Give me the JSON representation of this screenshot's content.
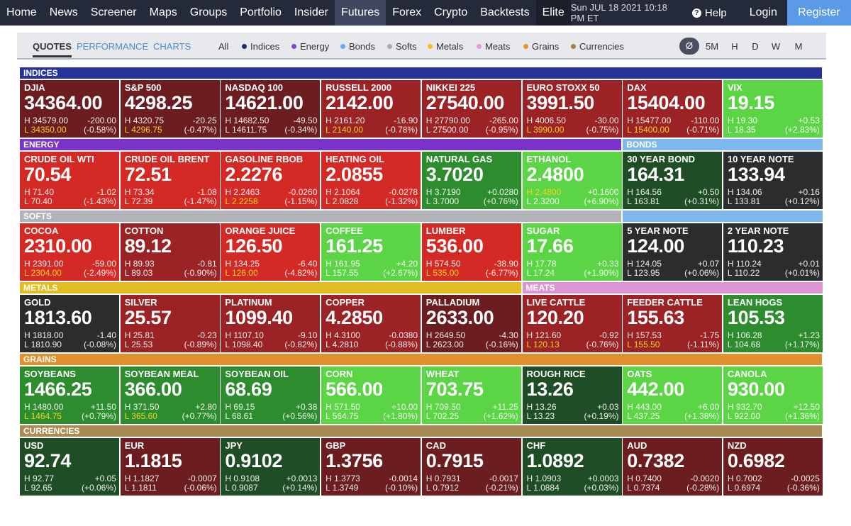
{
  "nav": {
    "items": [
      "Home",
      "News",
      "Screener",
      "Maps",
      "Groups",
      "Portfolio",
      "Insider",
      "Futures",
      "Forex",
      "Crypto",
      "Backtests",
      "Elite"
    ],
    "datetime": "Sun JUL 18 2021 10:18 PM ET",
    "help": "Help",
    "login": "Login",
    "register": "Register"
  },
  "toolbar": {
    "views": [
      "QUOTES",
      "PERFORMANCE",
      "CHARTS"
    ],
    "filters": [
      "All",
      "Indices",
      "Energy",
      "Bonds",
      "Softs",
      "Metals",
      "Meats",
      "Grains",
      "Currencies"
    ],
    "filter_colors": [
      "",
      "#1e2a6e",
      "#8a3fd6",
      "#6aa9e8",
      "#a9aab0",
      "#f2c11a",
      "#e49ad8",
      "#e6912a",
      "#a0804a"
    ],
    "timeframes": [
      "Ø",
      "5M",
      "H",
      "D",
      "W",
      "M"
    ]
  },
  "groups": [
    {
      "label": "INDICES",
      "color": "#25339b",
      "text": "#fff"
    },
    {
      "label": "ENERGY",
      "color": "#7a33c9",
      "text": "#fff"
    },
    {
      "label": "BONDS",
      "color": "#7fb8ee",
      "text": "#fff"
    },
    {
      "label": "SOFTS",
      "color": "#b2b3b8",
      "text": "#fff"
    },
    {
      "label": "METALS",
      "color": "#e2bc22",
      "text": "#fff"
    },
    {
      "label": "MEATS",
      "color": "#dc95d2",
      "text": "#fff"
    },
    {
      "label": "GRAINS",
      "color": "#e0912d",
      "text": "#fff"
    },
    {
      "label": "CURRENCIES",
      "color": "#a88a55",
      "text": "#fff"
    }
  ],
  "tiles": [
    {
      "name": "DJIA",
      "price": "34364.00",
      "h": "H 34579.00",
      "l": "L 34350.00",
      "chg": "-200.00",
      "pct": "(-0.58%)",
      "color": "drd",
      "hl": "l"
    },
    {
      "name": "S&P 500",
      "price": "4298.25",
      "h": "H 4320.75",
      "l": "L 4296.75",
      "chg": "-20.25",
      "pct": "(-0.47%)",
      "color": "drd",
      "hl": "l"
    },
    {
      "name": "NASDAQ 100",
      "price": "14621.00",
      "h": "H 14682.50",
      "l": "L 14611.75",
      "chg": "-49.50",
      "pct": "(-0.34%)",
      "color": "drd",
      "hl": ""
    },
    {
      "name": "RUSSELL 2000",
      "price": "2142.00",
      "h": "H 2161.20",
      "l": "L 2140.00",
      "chg": "-16.90",
      "pct": "(-0.78%)",
      "color": "mrd",
      "hl": "l"
    },
    {
      "name": "NIKKEI 225",
      "price": "27540.00",
      "h": "H 27790.00",
      "l": "L 27500.00",
      "chg": "-265.00",
      "pct": "(-0.95%)",
      "color": "mrd",
      "hl": ""
    },
    {
      "name": "EURO STOXX 50",
      "price": "3991.50",
      "h": "H 4006.50",
      "l": "L 3990.00",
      "chg": "-30.00",
      "pct": "(-0.75%)",
      "color": "mrd",
      "hl": "l"
    },
    {
      "name": "DAX",
      "price": "15404.00",
      "h": "H 15477.00",
      "l": "L 15400.00",
      "chg": "-110.00",
      "pct": "(-0.71%)",
      "color": "mrd",
      "hl": "l"
    },
    {
      "name": "VIX",
      "price": "19.15",
      "h": "H 19.30",
      "l": "L 18.35",
      "chg": "+0.53",
      "pct": "(+2.83%)",
      "color": "bg",
      "hl": ""
    },
    {
      "name": "CRUDE OIL WTI",
      "price": "70.54",
      "h": "H 71.40",
      "l": "L 70.40",
      "chg": "-1.02",
      "pct": "(-1.43%)",
      "color": "rd",
      "hl": ""
    },
    {
      "name": "CRUDE OIL BRENT",
      "price": "72.51",
      "h": "H 73.34",
      "l": "L 72.39",
      "chg": "-1.08",
      "pct": "(-1.47%)",
      "color": "rd",
      "hl": ""
    },
    {
      "name": "GASOLINE RBOB",
      "price": "2.2276",
      "h": "H 2.2463",
      "l": "L 2.2258",
      "chg": "-0.0260",
      "pct": "(-1.15%)",
      "color": "rd",
      "hl": "l"
    },
    {
      "name": "HEATING OIL",
      "price": "2.0855",
      "h": "H 2.1064",
      "l": "L 2.0828",
      "chg": "-0.0278",
      "pct": "(-1.32%)",
      "color": "rd",
      "hl": ""
    },
    {
      "name": "NATURAL GAS",
      "price": "3.7020",
      "h": "H 3.7190",
      "l": "L 3.7000",
      "chg": "+0.0280",
      "pct": "(+0.76%)",
      "color": "mg",
      "hl": ""
    },
    {
      "name": "ETHANOL",
      "price": "2.4800",
      "h": "H 2.4800",
      "l": "L 2.3200",
      "chg": "+0.1600",
      "pct": "(+6.90%)",
      "color": "bg",
      "hl": "h"
    },
    {
      "name": "30 YEAR BOND",
      "price": "164.31",
      "h": "H 164.56",
      "l": "L 163.81",
      "chg": "+0.50",
      "pct": "(+0.31%)",
      "color": "dg",
      "hl": ""
    },
    {
      "name": "10 YEAR NOTE",
      "price": "133.94",
      "h": "H 134.06",
      "l": "L 133.81",
      "chg": "+0.16",
      "pct": "(+0.12%)",
      "color": "dk",
      "hl": ""
    },
    {
      "name": "COCOA",
      "price": "2310.00",
      "h": "H 2391.00",
      "l": "L 2304.00",
      "chg": "-59.00",
      "pct": "(-2.49%)",
      "color": "rd",
      "hl": "l"
    },
    {
      "name": "COTTON",
      "price": "89.12",
      "h": "H 89.93",
      "l": "L 89.03",
      "chg": "-0.81",
      "pct": "(-0.90%)",
      "color": "mrd",
      "hl": ""
    },
    {
      "name": "ORANGE JUICE",
      "price": "126.50",
      "h": "H 134.25",
      "l": "L 126.00",
      "chg": "-6.40",
      "pct": "(-4.82%)",
      "color": "rd",
      "hl": "l"
    },
    {
      "name": "COFFEE",
      "price": "161.25",
      "h": "H 161.95",
      "l": "L 157.55",
      "chg": "+4.20",
      "pct": "(+2.67%)",
      "color": "bg",
      "hl": ""
    },
    {
      "name": "LUMBER",
      "price": "536.00",
      "h": "H 574.50",
      "l": "L 535.00",
      "chg": "-38.90",
      "pct": "(-6.77%)",
      "color": "rd",
      "hl": "l"
    },
    {
      "name": "SUGAR",
      "price": "17.66",
      "h": "H 17.78",
      "l": "L 17.24",
      "chg": "+0.33",
      "pct": "(+1.90%)",
      "color": "bg",
      "hl": ""
    },
    {
      "name": "5 YEAR NOTE",
      "price": "124.00",
      "h": "H 124.05",
      "l": "L 123.95",
      "chg": "+0.07",
      "pct": "(+0.06%)",
      "color": "dk",
      "hl": ""
    },
    {
      "name": "2 YEAR NOTE",
      "price": "110.23",
      "h": "H 110.24",
      "l": "L 110.22",
      "chg": "+0.01",
      "pct": "(+0.01%)",
      "color": "dk",
      "hl": ""
    },
    {
      "name": "GOLD",
      "price": "1813.60",
      "h": "H 1818.00",
      "l": "L 1810.90",
      "chg": "-1.40",
      "pct": "(-0.08%)",
      "color": "dk",
      "hl": ""
    },
    {
      "name": "SILVER",
      "price": "25.57",
      "h": "H 25.81",
      "l": "L 25.53",
      "chg": "-0.23",
      "pct": "(-0.89%)",
      "color": "mrd",
      "hl": ""
    },
    {
      "name": "PLATINUM",
      "price": "1099.40",
      "h": "H 1107.10",
      "l": "L 1098.40",
      "chg": "-9.10",
      "pct": "(-0.82%)",
      "color": "mrd",
      "hl": ""
    },
    {
      "name": "COPPER",
      "price": "4.2850",
      "h": "H 4.3100",
      "l": "L 4.2810",
      "chg": "-0.0380",
      "pct": "(-0.88%)",
      "color": "mrd",
      "hl": ""
    },
    {
      "name": "PALLADIUM",
      "price": "2633.00",
      "h": "H 2649.50",
      "l": "L 2623.00",
      "chg": "-4.30",
      "pct": "(-0.16%)",
      "color": "drd",
      "hl": ""
    },
    {
      "name": "LIVE CATTLE",
      "price": "120.20",
      "h": "H 121.60",
      "l": "L 120.13",
      "chg": "-0.92",
      "pct": "(-0.76%)",
      "color": "mrd",
      "hl": "l"
    },
    {
      "name": "FEEDER CATTLE",
      "price": "155.63",
      "h": "H 157.53",
      "l": "L 155.50",
      "chg": "-1.75",
      "pct": "(-1.11%)",
      "color": "mrd",
      "hl": "l"
    },
    {
      "name": "LEAN HOGS",
      "price": "105.53",
      "h": "H 106.28",
      "l": "L 104.68",
      "chg": "+1.23",
      "pct": "(+1.17%)",
      "color": "mg",
      "hl": ""
    },
    {
      "name": "SOYBEANS",
      "price": "1466.25",
      "h": "H 1480.00",
      "l": "L 1464.75",
      "chg": "+11.50",
      "pct": "(+0.79%)",
      "color": "mg",
      "hl": "l"
    },
    {
      "name": "SOYBEAN MEAL",
      "price": "366.00",
      "h": "H 371.50",
      "l": "L 365.60",
      "chg": "+2.80",
      "pct": "(+0.77%)",
      "color": "mg",
      "hl": "l"
    },
    {
      "name": "SOYBEAN OIL",
      "price": "68.69",
      "h": "H 69.15",
      "l": "L 68.61",
      "chg": "+0.38",
      "pct": "(+0.56%)",
      "color": "mg",
      "hl": ""
    },
    {
      "name": "CORN",
      "price": "566.00",
      "h": "H 571.50",
      "l": "L 564.75",
      "chg": "+10.00",
      "pct": "(+1.80%)",
      "color": "bg",
      "hl": ""
    },
    {
      "name": "WHEAT",
      "price": "703.75",
      "h": "H 709.50",
      "l": "L 702.25",
      "chg": "+11.25",
      "pct": "(+1.62%)",
      "color": "bg",
      "hl": ""
    },
    {
      "name": "ROUGH RICE",
      "price": "13.26",
      "h": "H 13.26",
      "l": "L 13.23",
      "chg": "+0.03",
      "pct": "(+0.19%)",
      "color": "dg",
      "hl": ""
    },
    {
      "name": "OATS",
      "price": "442.00",
      "h": "H 443.00",
      "l": "L 437.25",
      "chg": "+6.00",
      "pct": "(+1.38%)",
      "color": "bg",
      "hl": ""
    },
    {
      "name": "CANOLA",
      "price": "930.00",
      "h": "H 932.70",
      "l": "L 922.00",
      "chg": "+12.50",
      "pct": "(+1.36%)",
      "color": "bg",
      "hl": ""
    },
    {
      "name": "USD",
      "price": "92.74",
      "h": "H 92.77",
      "l": "L 92.65",
      "chg": "+0.05",
      "pct": "(+0.06%)",
      "color": "dg",
      "hl": ""
    },
    {
      "name": "EUR",
      "price": "1.1815",
      "h": "H 1.1827",
      "l": "L 1.1811",
      "chg": "-0.0007",
      "pct": "(-0.06%)",
      "color": "drd",
      "hl": ""
    },
    {
      "name": "JPY",
      "price": "0.9102",
      "h": "H 0.9108",
      "l": "L 0.9087",
      "chg": "+0.0013",
      "pct": "(+0.14%)",
      "color": "dg",
      "hl": ""
    },
    {
      "name": "GBP",
      "price": "1.3756",
      "h": "H 1.3773",
      "l": "L 1.3749",
      "chg": "-0.0014",
      "pct": "(-0.10%)",
      "color": "drd",
      "hl": ""
    },
    {
      "name": "CAD",
      "price": "0.7915",
      "h": "H 0.7931",
      "l": "L 0.7912",
      "chg": "-0.0017",
      "pct": "(-0.21%)",
      "color": "drd",
      "hl": ""
    },
    {
      "name": "CHF",
      "price": "1.0892",
      "h": "H 1.0903",
      "l": "L 1.0884",
      "chg": "+0.0003",
      "pct": "(+0.03%)",
      "color": "dg",
      "hl": ""
    },
    {
      "name": "AUD",
      "price": "0.7382",
      "h": "H 0.7400",
      "l": "L 0.7374",
      "chg": "-0.0020",
      "pct": "(-0.28%)",
      "color": "drd",
      "hl": ""
    },
    {
      "name": "NZD",
      "price": "0.6982",
      "h": "H 0.7002",
      "l": "L 0.6974",
      "chg": "-0.0025",
      "pct": "(-0.36%)",
      "color": "drd",
      "hl": ""
    }
  ]
}
